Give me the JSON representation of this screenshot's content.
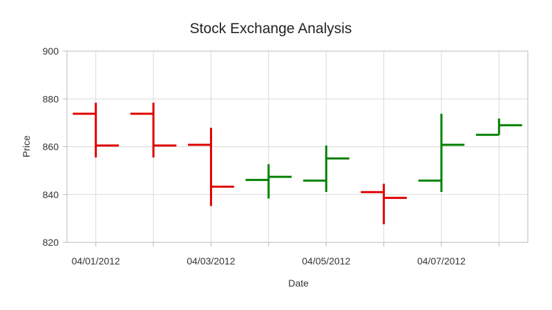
{
  "chart_data": {
    "type": "ohlc",
    "title": "Stock Exchange Analysis",
    "xlabel": "Date",
    "ylabel": "Price",
    "ylim": [
      820,
      900
    ],
    "yticks": [
      820,
      840,
      860,
      880,
      900
    ],
    "x_tick_labels": [
      "04/01/2012",
      "04/03/2012",
      "04/05/2012",
      "04/07/2012"
    ],
    "grid": true,
    "colors": {
      "up": "#008000",
      "down": "#e00000"
    },
    "series": [
      {
        "points": [
          {
            "open": 873.8,
            "high": 878.4,
            "low": 855.5,
            "close": 860.5
          },
          {
            "open": 873.8,
            "high": 878.4,
            "low": 855.5,
            "close": 860.5
          },
          {
            "open": 860.8,
            "high": 867.9,
            "low": 835.2,
            "close": 843.3
          },
          {
            "open": 846.1,
            "high": 852.7,
            "low": 838.3,
            "close": 847.4
          },
          {
            "open": 845.8,
            "high": 860.5,
            "low": 841.1,
            "close": 855.1
          },
          {
            "open": 841.0,
            "high": 844.5,
            "low": 827.6,
            "close": 838.6
          },
          {
            "open": 845.8,
            "high": 873.8,
            "low": 841.1,
            "close": 860.8
          },
          {
            "open": 865.0,
            "high": 871.8,
            "low": 865.0,
            "close": 869.0
          }
        ]
      }
    ]
  }
}
